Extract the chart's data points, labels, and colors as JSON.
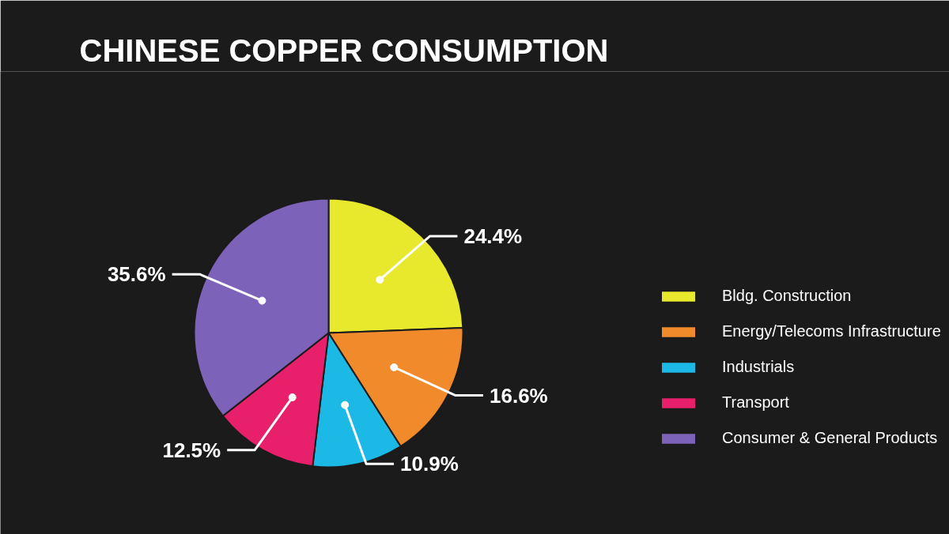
{
  "chart_data": {
    "type": "pie",
    "title": "CHINESE COPPER CONSUMPTION",
    "categories": [
      "Bldg. Construction",
      "Energy/Telecoms Infrastructure",
      "Industrials",
      "Transport",
      "Consumer & General Products"
    ],
    "values": [
      24.4,
      16.6,
      10.9,
      12.5,
      35.6
    ],
    "colors": [
      "#e8e82c",
      "#f08a2a",
      "#1cb8e6",
      "#e8206c",
      "#7c62b8"
    ],
    "value_labels": [
      "24.4%",
      "16.6%",
      "10.9%",
      "12.5%",
      "35.6%"
    ],
    "legend": "right"
  }
}
